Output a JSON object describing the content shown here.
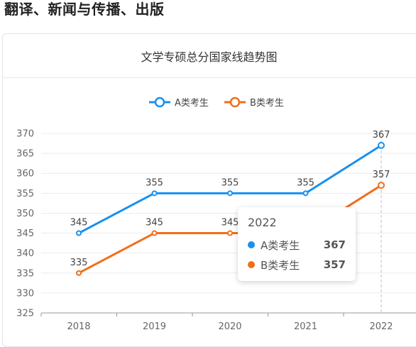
{
  "page": {
    "heading": "翻译、新闻与传播、出版"
  },
  "card": {
    "title": "文学专硕总分国家线趋势图"
  },
  "colors": {
    "seriesA": "#1890f0",
    "seriesB": "#f26e1a",
    "grid": "#e8ecf1",
    "axis": "#999999"
  },
  "chart_data": {
    "type": "line",
    "title": "文学专硕总分国家线趋势图",
    "categories": [
      "2018",
      "2019",
      "2020",
      "2021",
      "2022"
    ],
    "series": [
      {
        "name": "A类考生",
        "values": [
          345,
          355,
          355,
          355,
          367
        ]
      },
      {
        "name": "B类考生",
        "values": [
          335,
          345,
          345,
          345,
          357
        ]
      }
    ],
    "yticks": [
      325,
      330,
      335,
      340,
      345,
      350,
      355,
      360,
      365,
      370
    ],
    "ylim": [
      325,
      370
    ],
    "xlabel": "",
    "ylabel": "",
    "grid": true,
    "legend": "top-center"
  },
  "tooltip": {
    "title": "2022",
    "rows": [
      {
        "name": "A类考生",
        "value": "367"
      },
      {
        "name": "B类考生",
        "value": "357"
      }
    ]
  }
}
